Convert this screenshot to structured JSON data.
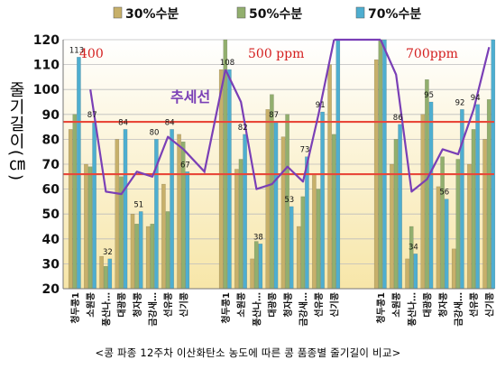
{
  "chart_data": {
    "type": "bar",
    "ylabel": "줄기길이(㎝)",
    "ylim": [
      20,
      120
    ],
    "yticks": [
      20,
      30,
      40,
      50,
      60,
      70,
      80,
      90,
      100,
      110,
      120
    ],
    "grid": true,
    "legend_position": "top",
    "caption": "<콩 파종 12주차 이산화탄소 농도에 따른 콩 품종별 줄기길이 비교>",
    "trend_label": "추세선",
    "colors": {
      "s30": "#C7B06A",
      "s50": "#92AF6E",
      "s70": "#4EAED0",
      "trend": "#7A3FB6",
      "ref": "#E8483A",
      "plot_bg_top": "#FFFFFF",
      "plot_bg_bottom": "#F7E6A8"
    },
    "reference_lines": [
      87,
      66
    ],
    "groups": [
      {
        "name": "400",
        "categories": [
          "청두콩1",
          "소원콩",
          "풍산나…",
          "대광콩",
          "청자콩",
          "금강새…",
          "선유콩",
          "신기콩"
        ],
        "series": [
          {
            "name": "30%수분",
            "values": [
              84,
              70,
              33,
              80,
              50,
              45,
              62,
              82
            ]
          },
          {
            "name": "50%수분",
            "values": [
              90,
              69,
              29,
              65,
              46,
              46,
              51,
              79
            ]
          },
          {
            "name": "70%수분",
            "values": [
              113,
              87,
              32,
              84,
              51,
              80,
              84,
              67
            ]
          }
        ],
        "labels": [
          "113",
          "87",
          "32",
          "84",
          "51",
          "80",
          "84",
          "67"
        ],
        "trend": [
          null,
          100,
          59,
          58,
          67,
          65,
          81,
          76
        ]
      },
      {
        "name": "500 ppm",
        "categories": [
          "청두콩1",
          "소원콩",
          "풍산나…",
          "대광콩",
          "청자콩",
          "금강새…",
          "선유콩",
          "신기콩"
        ],
        "series": [
          {
            "name": "30%수분",
            "values": [
              108,
              68,
              32,
              92,
              81,
              45,
              66,
              110
            ]
          },
          {
            "name": "50%수분",
            "values": [
              120,
              72,
              39,
              98,
              90,
              57,
              60,
              82
            ]
          },
          {
            "name": "70%수분",
            "values": [
              108,
              82,
              38,
              87,
              53,
              73,
              91,
              120
            ]
          }
        ],
        "labels": [
          "108",
          "82",
          "38",
          "87",
          "53",
          "73",
          "91",
          ""
        ],
        "trend": [
          108,
          95,
          60,
          62,
          69,
          63,
          90,
          120
        ]
      },
      {
        "name": "700ppm",
        "categories": [
          "청두콩1",
          "소원콩",
          "풍산나…",
          "대광콩",
          "청자콩",
          "금강새…",
          "선유콩",
          "신기콩"
        ],
        "series": [
          {
            "name": "30%수분",
            "values": [
              112,
              70,
              32,
              90,
              61,
              36,
              70,
              80
            ]
          },
          {
            "name": "50%수분",
            "values": [
              120,
              80,
              45,
              104,
              73,
              72,
              84,
              96
            ]
          },
          {
            "name": "70%수분",
            "values": [
              120,
              86,
              34,
              95,
              56,
              92,
              94,
              120
            ]
          }
        ],
        "labels": [
          "",
          "86",
          "34",
          "95",
          "56",
          "92",
          "94",
          ""
        ],
        "trend": [
          120,
          106,
          59,
          64,
          76,
          74,
          92,
          117
        ]
      }
    ],
    "between_group_trend": [
      67,
      67
    ]
  }
}
